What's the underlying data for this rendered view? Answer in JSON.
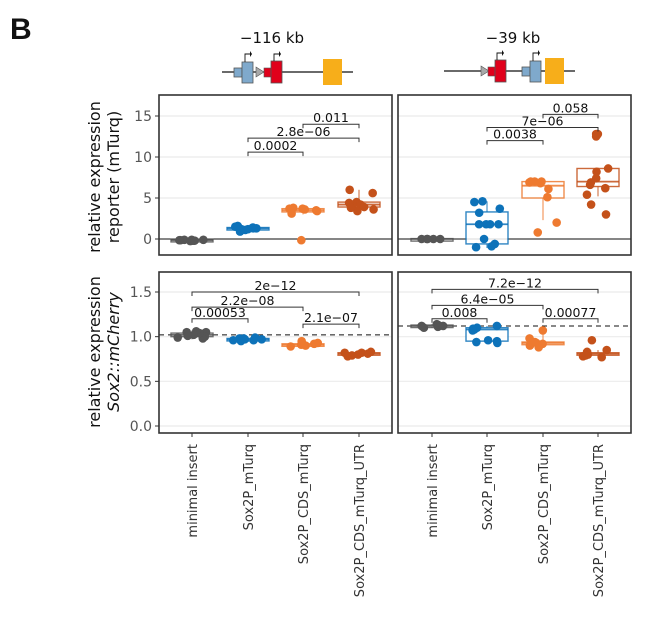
{
  "figure": {
    "panel_letter": "B",
    "colors": {
      "minimal insert": "#555555",
      "Sox2P_mTurq": "#0d72b9",
      "Sox2P_CDS_mTurq": "#ee7a30",
      "Sox2P_CDS_mTurq_UTR": "#c4511a",
      "frame": "#333333",
      "grid": "#ebebeb",
      "construct_blue": "#7fa9cc",
      "construct_red": "#e0001b",
      "construct_yellow": "#f7ae1a",
      "construct_triangle": "#a8a8a8"
    }
  },
  "constructs": [
    {
      "label": "−116 kb",
      "elements": [
        "blue-promoter",
        "triangle",
        "red-promoter",
        "yellow-enhancer"
      ]
    },
    {
      "label": "−39 kb",
      "elements": [
        "triangle",
        "red-promoter",
        "blue-promoter",
        "yellow-enhancer"
      ]
    }
  ],
  "chart_data": [
    {
      "type": "box",
      "id": "top-left",
      "row": "top",
      "column": "−116 kb",
      "ylabel": [
        "relative expression",
        "reporter (mTurq)"
      ],
      "ylim": [
        -2,
        17.5
      ],
      "yticks": [
        0,
        5,
        10,
        15
      ],
      "ytick_labels": [
        "0",
        "5",
        "10",
        "15"
      ],
      "hline": {
        "value": 0,
        "style": "solid"
      },
      "categories": [
        "minimal insert",
        "Sox2P_mTurq",
        "Sox2P_CDS_mTurq",
        "Sox2P_CDS_mTurq_UTR"
      ],
      "boxes": [
        {
          "q1": -0.25,
          "median": -0.15,
          "q3": -0.05,
          "wlo": -0.3,
          "whi": 0.0,
          "points": [
            -0.1,
            -0.2,
            -0.15,
            -0.1,
            -0.25,
            -0.2,
            -0.15,
            -0.1,
            -0.2
          ]
        },
        {
          "q1": 1.2,
          "median": 1.3,
          "q3": 1.4,
          "wlo": 0.8,
          "whi": 1.6,
          "points": [
            1.1,
            1.2,
            1.3,
            1.4,
            1.5,
            1.2,
            0.9,
            1.3,
            1.6
          ]
        },
        {
          "q1": 3.3,
          "median": 3.5,
          "q3": 3.7,
          "wlo": 3.0,
          "whi": 3.9,
          "points": [
            3.6,
            3.7,
            3.8,
            3.7,
            3.5,
            3.4,
            3.1,
            -0.15
          ]
        },
        {
          "q1": 3.9,
          "median": 4.2,
          "q3": 4.5,
          "wlo": 3.4,
          "whi": 6.0,
          "points": [
            5.6,
            6.0,
            4.5,
            4.2,
            3.9,
            4.0,
            4.4,
            3.6,
            3.4,
            3.8
          ]
        }
      ],
      "brackets": [
        {
          "from": 1,
          "to": 2,
          "y": 10.6,
          "label": "0.0002"
        },
        {
          "from": 1,
          "to": 3,
          "y": 12.3,
          "label": "2.8e−06"
        },
        {
          "from": 2,
          "to": 3,
          "y": 14.0,
          "label": "0.011"
        }
      ]
    },
    {
      "type": "box",
      "id": "top-right",
      "row": "top",
      "column": "−39 kb",
      "ylim": [
        -2,
        17.5
      ],
      "yticks": [
        0,
        5,
        10,
        15
      ],
      "hline": {
        "value": 0,
        "style": "solid"
      },
      "categories": [
        "minimal insert",
        "Sox2P_mTurq",
        "Sox2P_CDS_mTurq",
        "Sox2P_CDS_mTurq_UTR"
      ],
      "boxes": [
        {
          "q1": -0.05,
          "median": 0.0,
          "q3": 0.05,
          "wlo": -0.1,
          "whi": 0.1,
          "points": [
            0.0,
            0.0,
            0.0,
            0.0,
            0.0
          ]
        },
        {
          "q1": -0.6,
          "median": 1.8,
          "q3": 3.3,
          "wlo": -1.1,
          "whi": 4.6,
          "points": [
            4.6,
            4.5,
            3.7,
            3.2,
            1.8,
            1.8,
            1.8,
            1.8,
            0.0,
            -0.6,
            -0.9,
            -1.0
          ]
        },
        {
          "q1": 5.0,
          "median": 6.5,
          "q3": 7.0,
          "wlo": 2.3,
          "whi": 7.1,
          "points": [
            7.0,
            7.0,
            7.0,
            6.9,
            6.8,
            6.1,
            5.1,
            2.0,
            0.8
          ]
        },
        {
          "q1": 6.4,
          "median": 7.0,
          "q3": 8.6,
          "wlo": 5.2,
          "whi": 8.7,
          "points": [
            12.8,
            12.8,
            12.5,
            8.6,
            8.2,
            7.4,
            6.9,
            6.6,
            6.2,
            5.4,
            4.2,
            3.0
          ]
        }
      ],
      "brackets": [
        {
          "from": 1,
          "to": 2,
          "y": 12.0,
          "label": "0.0038"
        },
        {
          "from": 1,
          "to": 3,
          "y": 13.6,
          "label": "7e−06"
        },
        {
          "from": 2,
          "to": 3,
          "y": 15.2,
          "label": "0.058"
        }
      ]
    },
    {
      "type": "box",
      "id": "bottom-left",
      "row": "bottom",
      "column": "−116 kb",
      "ylabel": [
        "relative  expression",
        "Sox2::mCherry"
      ],
      "ylim": [
        -0.03,
        1.7
      ],
      "yticks": [
        0.0,
        0.5,
        1.0,
        1.5
      ],
      "ytick_labels": [
        "0.0",
        "0.5",
        "1.0",
        "1.5"
      ],
      "hline": {
        "value": 1.02,
        "style": "dashed"
      },
      "categories": [
        "minimal insert",
        "Sox2P_mTurq",
        "Sox2P_CDS_mTurq",
        "Sox2P_CDS_mTurq_UTR"
      ],
      "boxes": [
        {
          "q1": 1.0,
          "median": 1.02,
          "q3": 1.04,
          "wlo": 0.97,
          "whi": 1.07,
          "points": [
            1.03,
            1.05,
            1.0,
            0.98,
            1.04,
            1.06,
            1.02,
            0.99,
            1.05,
            1.01
          ]
        },
        {
          "q1": 0.96,
          "median": 0.97,
          "q3": 0.98,
          "wlo": 0.94,
          "whi": 0.99,
          "points": [
            0.98,
            0.97,
            0.96,
            0.99,
            0.95,
            0.97,
            0.96,
            0.98
          ]
        },
        {
          "q1": 0.9,
          "median": 0.91,
          "q3": 0.92,
          "wlo": 0.88,
          "whi": 0.96,
          "points": [
            0.9,
            0.91,
            0.89,
            0.93,
            0.95,
            0.92
          ]
        },
        {
          "q1": 0.8,
          "median": 0.81,
          "q3": 0.82,
          "wlo": 0.78,
          "whi": 0.84,
          "points": [
            0.82,
            0.8,
            0.78,
            0.81,
            0.83,
            0.79,
            0.82
          ]
        }
      ],
      "brackets": [
        {
          "from": 0,
          "to": 1,
          "y": 1.2,
          "label": "0.00053"
        },
        {
          "from": 0,
          "to": 2,
          "y": 1.33,
          "label": "2.2e−08"
        },
        {
          "from": 0,
          "to": 3,
          "y": 1.5,
          "label": "2e−12"
        },
        {
          "from": 2,
          "to": 3,
          "y": 1.14,
          "label": "2.1e−07"
        }
      ]
    },
    {
      "type": "box",
      "id": "bottom-right",
      "row": "bottom",
      "column": "−39 kb",
      "ylim": [
        -0.03,
        1.7
      ],
      "yticks": [
        0.0,
        0.5,
        1.0,
        1.5
      ],
      "hline": {
        "value": 1.12,
        "style": "dashed"
      },
      "categories": [
        "minimal insert",
        "Sox2P_mTurq",
        "Sox2P_CDS_mTurq",
        "Sox2P_CDS_mTurq_UTR"
      ],
      "boxes": [
        {
          "q1": 1.11,
          "median": 1.12,
          "q3": 1.13,
          "wlo": 1.1,
          "whi": 1.14,
          "points": [
            1.12,
            1.13,
            1.11,
            1.14,
            1.12,
            1.1
          ]
        },
        {
          "q1": 0.95,
          "median": 1.08,
          "q3": 1.1,
          "wlo": 0.93,
          "whi": 1.12,
          "points": [
            1.12,
            1.1,
            1.09,
            1.08,
            1.07,
            0.96,
            0.95,
            0.93,
            0.94
          ]
        },
        {
          "q1": 0.91,
          "median": 0.93,
          "q3": 0.94,
          "wlo": 0.88,
          "whi": 1.07,
          "points": [
            1.07,
            0.98,
            0.93,
            0.92,
            0.9,
            0.88,
            0.94
          ]
        },
        {
          "q1": 0.8,
          "median": 0.81,
          "q3": 0.82,
          "wlo": 0.77,
          "whi": 0.85,
          "points": [
            0.96,
            0.85,
            0.83,
            0.8,
            0.78,
            0.77,
            0.79
          ]
        }
      ],
      "brackets": [
        {
          "from": 0,
          "to": 1,
          "y": 1.2,
          "label": "0.008"
        },
        {
          "from": 0,
          "to": 2,
          "y": 1.35,
          "label": "6.4e−05"
        },
        {
          "from": 0,
          "to": 3,
          "y": 1.53,
          "label": "7.2e−12"
        },
        {
          "from": 2,
          "to": 3,
          "y": 1.2,
          "label": "0.00077"
        }
      ]
    }
  ],
  "x_categories": [
    "minimal insert",
    "Sox2P_mTurq",
    "Sox2P_CDS_mTurq",
    "Sox2P_CDS_mTurq_UTR"
  ]
}
